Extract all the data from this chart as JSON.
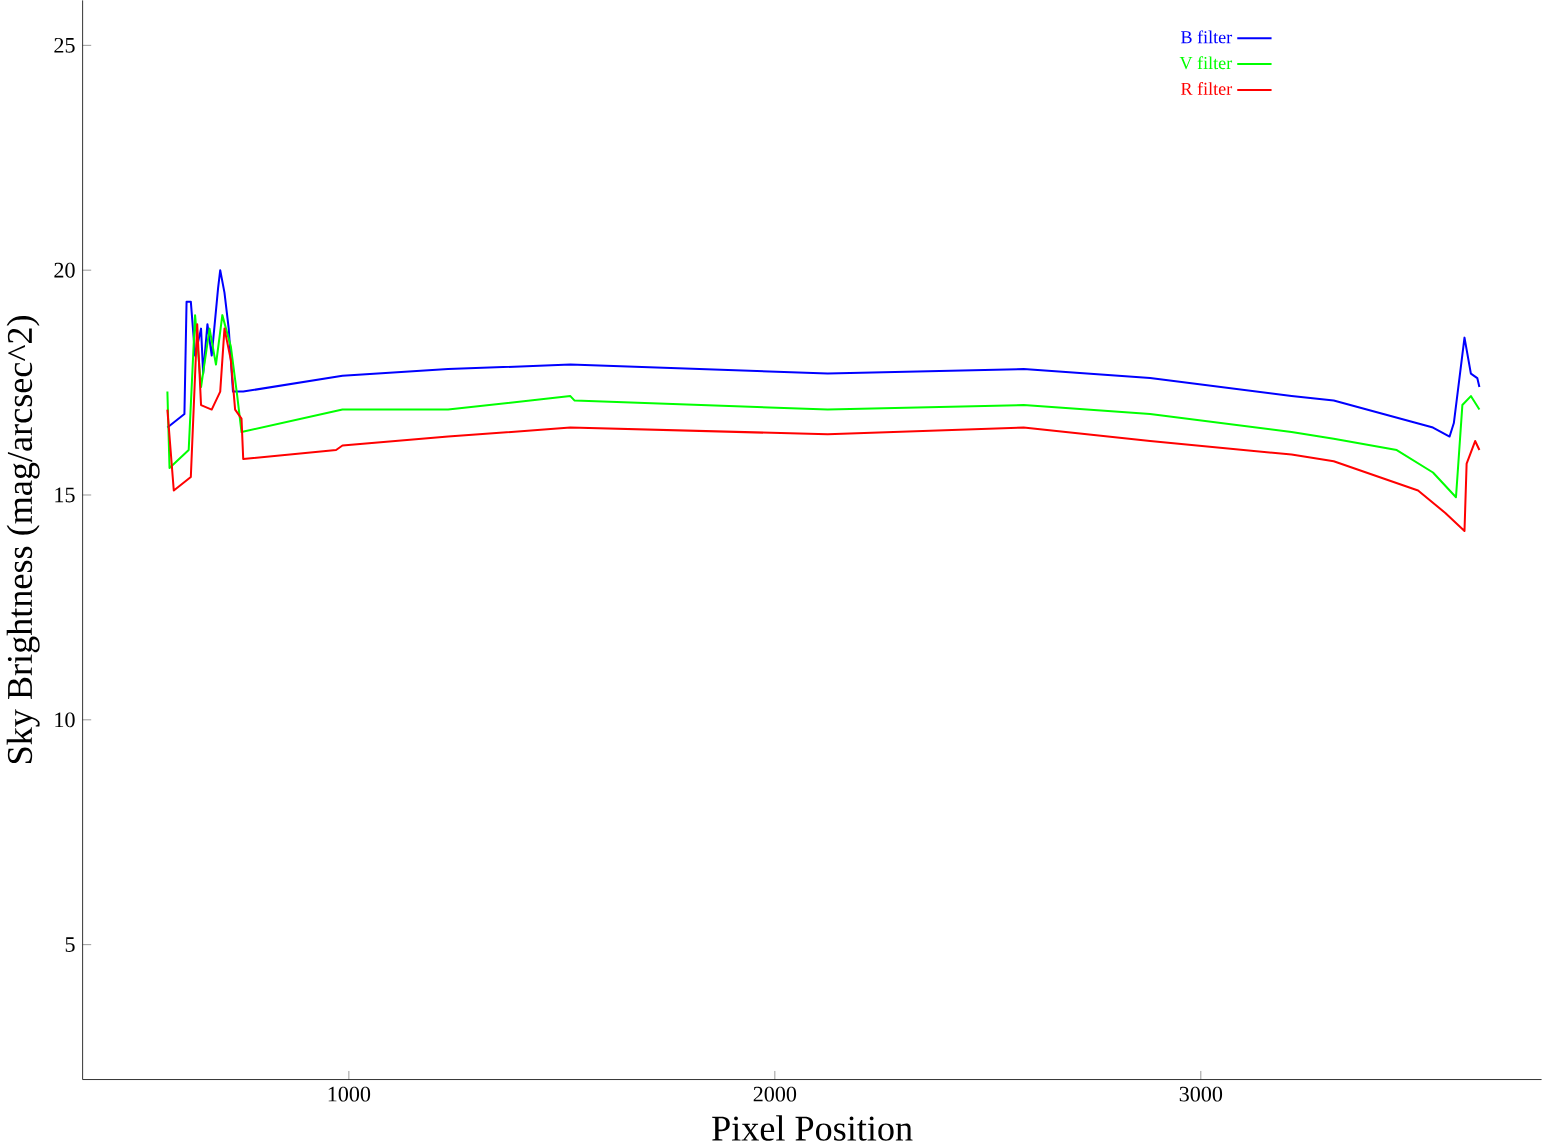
{
  "chart_data": {
    "type": "line",
    "xlabel": "Pixel Position",
    "ylabel": "Sky Brightness (mag/arcsec^2)",
    "xlim": [
      375,
      3800
    ],
    "ylim": [
      2,
      26
    ],
    "xticks": [
      1000,
      2000,
      3000
    ],
    "yticks": [
      5,
      10,
      15,
      20,
      25
    ],
    "grid": false,
    "legend": "top right",
    "marker": "none",
    "line_style": "solid",
    "series": [
      {
        "name": "B filter",
        "color": "#0000ff",
        "x": [
          574,
          614,
          619,
          629,
          639,
          653,
          658,
          668,
          678,
          693,
          698,
          708,
          718,
          728,
          752,
          985,
          1233,
          1520,
          2124,
          2584,
          2881,
          3213,
          3312,
          3545,
          3584,
          3594,
          3619,
          3634,
          3649,
          3654
        ],
        "values": [
          16.5,
          16.8,
          19.3,
          19.3,
          18.1,
          18.7,
          17.7,
          18.8,
          18.1,
          19.6,
          20.0,
          19.5,
          18.7,
          17.3,
          17.3,
          17.65,
          17.8,
          17.9,
          17.7,
          17.8,
          17.6,
          17.2,
          17.1,
          16.5,
          16.3,
          16.6,
          18.5,
          17.7,
          17.6,
          17.4
        ]
      },
      {
        "name": "V filter",
        "color": "#00ff00",
        "x": [
          574,
          579,
          624,
          639,
          653,
          673,
          688,
          703,
          723,
          738,
          748,
          985,
          1233,
          1520,
          1530,
          2124,
          2584,
          2881,
          3213,
          3312,
          3460,
          3545,
          3599,
          3614,
          3634,
          3654
        ],
        "values": [
          17.3,
          15.6,
          16.0,
          19.0,
          17.4,
          18.7,
          17.9,
          19.0,
          18.3,
          17.2,
          16.4,
          16.9,
          16.9,
          17.2,
          17.1,
          16.9,
          17.0,
          16.8,
          16.4,
          16.25,
          16.0,
          15.5,
          14.95,
          17.0,
          17.2,
          16.9
        ]
      },
      {
        "name": "R filter",
        "color": "#ff0000",
        "x": [
          574,
          589,
          629,
          644,
          653,
          678,
          698,
          708,
          723,
          733,
          748,
          752,
          970,
          985,
          1233,
          1520,
          2124,
          2584,
          2881,
          3213,
          3312,
          3510,
          3574,
          3619,
          3624,
          3644,
          3654
        ],
        "values": [
          16.9,
          15.1,
          15.4,
          18.8,
          17.0,
          16.9,
          17.3,
          18.7,
          18.0,
          16.9,
          16.7,
          15.8,
          16.0,
          16.1,
          16.3,
          16.5,
          16.35,
          16.5,
          16.2,
          15.9,
          15.75,
          15.1,
          14.6,
          14.2,
          15.7,
          16.2,
          16.0
        ]
      }
    ]
  }
}
